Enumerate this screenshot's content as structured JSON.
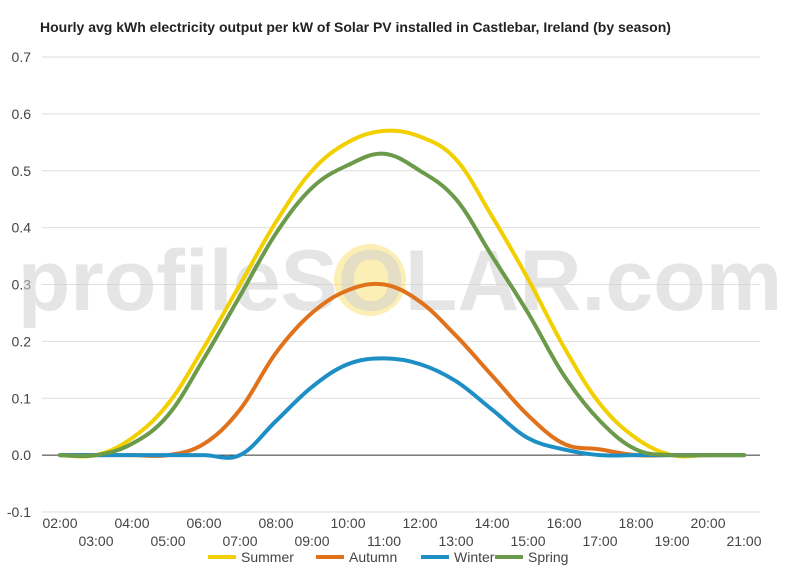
{
  "chart_data": {
    "type": "line",
    "title": "Hourly avg kWh electricity output per kW of Solar PV installed in Castlebar, Ireland (by season)",
    "xlabel": "",
    "ylabel": "",
    "ylim": [
      -0.1,
      0.7
    ],
    "y_ticks": [
      -0.1,
      0.0,
      0.1,
      0.2,
      0.3,
      0.4,
      0.5,
      0.6,
      0.7
    ],
    "y_tick_labels": [
      "-0.1",
      "0.0",
      "0.1",
      "0.2",
      "0.3",
      "0.4",
      "0.5",
      "0.6",
      "0.7"
    ],
    "x": [
      "02:00",
      "03:00",
      "04:00",
      "05:00",
      "06:00",
      "07:00",
      "08:00",
      "09:00",
      "10:00",
      "11:00",
      "12:00",
      "13:00",
      "14:00",
      "15:00",
      "16:00",
      "17:00",
      "18:00",
      "19:00",
      "20:00",
      "21:00"
    ],
    "grid": true,
    "legend_position": "bottom",
    "series": [
      {
        "name": "Summer",
        "color": "#f2d000",
        "values": [
          0.0,
          0.0,
          0.03,
          0.09,
          0.19,
          0.3,
          0.41,
          0.5,
          0.55,
          0.57,
          0.56,
          0.52,
          0.42,
          0.31,
          0.19,
          0.09,
          0.03,
          0.0,
          0.0,
          0.0
        ]
      },
      {
        "name": "Autumn",
        "color": "#e0721c",
        "values": [
          0.0,
          0.0,
          0.0,
          0.0,
          0.02,
          0.08,
          0.18,
          0.25,
          0.29,
          0.3,
          0.27,
          0.21,
          0.14,
          0.07,
          0.02,
          0.01,
          0.0,
          0.0,
          0.0,
          0.0
        ]
      },
      {
        "name": "Winter",
        "color": "#1e8fc4",
        "values": [
          0.0,
          0.0,
          0.0,
          0.0,
          0.0,
          0.0,
          0.06,
          0.12,
          0.16,
          0.17,
          0.16,
          0.13,
          0.08,
          0.03,
          0.01,
          0.0,
          0.0,
          0.0,
          0.0,
          0.0
        ]
      },
      {
        "name": "Spring",
        "color": "#6a9a4a",
        "values": [
          0.0,
          0.0,
          0.02,
          0.07,
          0.17,
          0.28,
          0.39,
          0.47,
          0.51,
          0.53,
          0.5,
          0.45,
          0.35,
          0.25,
          0.14,
          0.06,
          0.01,
          0.0,
          0.0,
          0.0
        ]
      }
    ]
  },
  "watermark": {
    "text": "profileSOLAR.com",
    "sun_color": "#f7e27a"
  }
}
